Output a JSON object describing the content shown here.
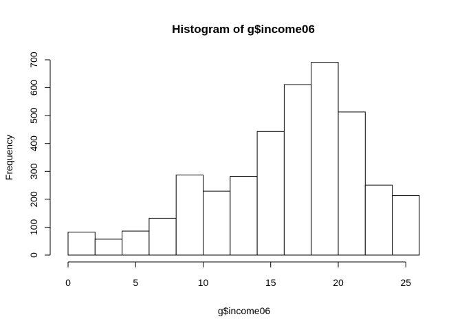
{
  "chart_data": {
    "type": "bar",
    "title": "Histogram of g$income06",
    "xlabel": "g$income06",
    "ylabel": "Frequency",
    "bin_edges": [
      0,
      2,
      4,
      6,
      8,
      10,
      12,
      14,
      16,
      18,
      20,
      22,
      24,
      26
    ],
    "values": [
      82,
      57,
      86,
      132,
      287,
      229,
      282,
      443,
      611,
      691,
      513,
      251,
      213
    ],
    "xlim": [
      0,
      26
    ],
    "ylim": [
      0,
      700
    ],
    "x_ticks": [
      "0",
      "5",
      "10",
      "15",
      "20",
      "25"
    ],
    "y_ticks": [
      "0",
      "100",
      "200",
      "300",
      "400",
      "500",
      "600",
      "700"
    ],
    "grid": false,
    "bar_fill": "#ffffff",
    "bar_stroke": "#000000"
  }
}
